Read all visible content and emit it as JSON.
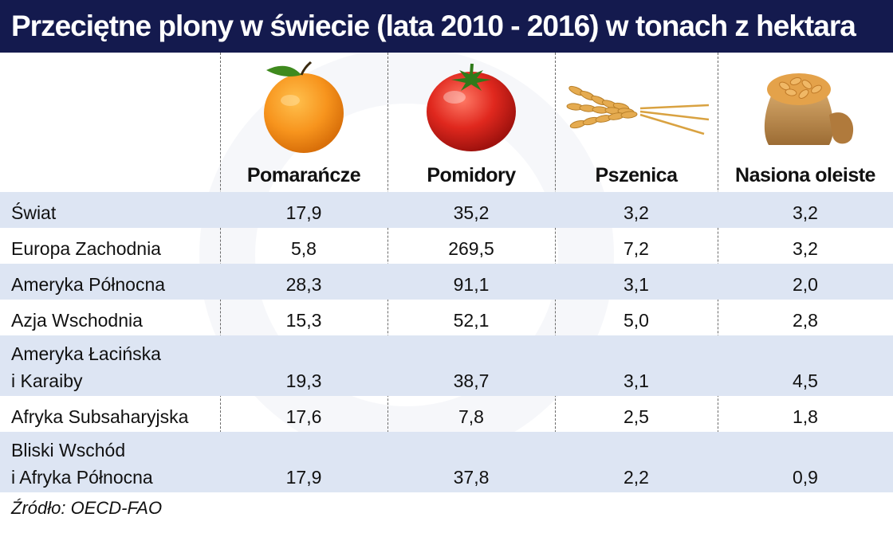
{
  "title": "Przeciętne plony w świecie (lata 2010 - 2016) w tonach z hektara",
  "source": "Źródło: OECD-FAO",
  "colors": {
    "title_bg": "#141a4e",
    "alt_row": "#dde5f3",
    "orange": "#f7941d",
    "tomato": "#d7261e",
    "wheat": "#e0a64a",
    "sack": "#b9894e"
  },
  "chart_data": {
    "type": "table",
    "title": "Przeciętne plony w świecie (lata 2010 - 2016) w tonach z hektara",
    "columns": [
      {
        "label": "Pomarańcze",
        "icon": "orange-icon"
      },
      {
        "label": "Pomidory",
        "icon": "tomato-icon"
      },
      {
        "label": "Pszenica",
        "icon": "wheat-icon"
      },
      {
        "label": "Nasiona oleiste",
        "icon": "seed-sack-icon"
      }
    ],
    "rows": [
      {
        "region": "Świat",
        "values": [
          "17,9",
          "35,2",
          "3,2",
          "3,2"
        ]
      },
      {
        "region": "Europa Zachodnia",
        "values": [
          "5,8",
          "269,5",
          "7,2",
          "3,2"
        ]
      },
      {
        "region": "Ameryka Północna",
        "values": [
          "28,3",
          "91,1",
          "3,1",
          "2,0"
        ]
      },
      {
        "region": "Azja Wschodnia",
        "values": [
          "15,3",
          "52,1",
          "5,0",
          "2,8"
        ]
      },
      {
        "region": "Ameryka Łacińska\ni Karaiby",
        "values": [
          "19,3",
          "38,7",
          "3,1",
          "4,5"
        ]
      },
      {
        "region": "Afryka Subsaharyjska",
        "values": [
          "17,6",
          "7,8",
          "2,5",
          "1,8"
        ]
      },
      {
        "region": "Bliski Wschód\ni Afryka Północna",
        "values": [
          "17,9",
          "37,8",
          "2,2",
          "0,9"
        ]
      }
    ],
    "source": "Źródło: OECD-FAO"
  }
}
